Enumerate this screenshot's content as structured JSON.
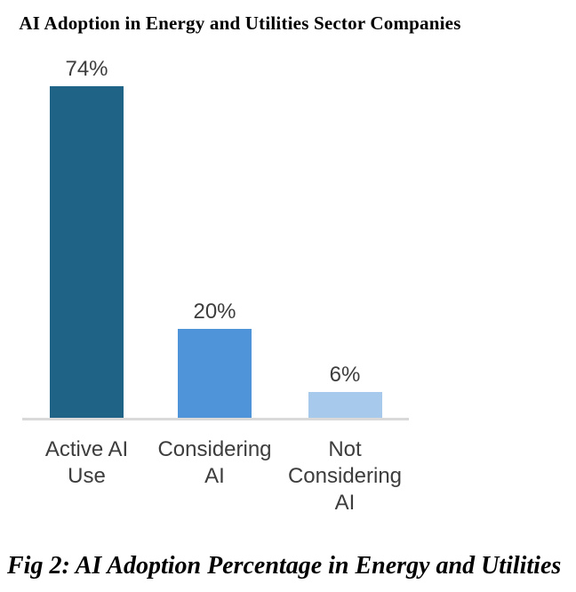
{
  "chart_data": {
    "type": "bar",
    "title": "AI Adoption in Energy and Utilities Sector Companies",
    "categories": [
      "Active AI Use",
      "Considering AI",
      "Not Considering AI"
    ],
    "category_lines": [
      [
        "Active AI",
        "Use"
      ],
      [
        "Considering",
        "AI"
      ],
      [
        "Not",
        "Considering",
        "AI"
      ]
    ],
    "values": [
      74,
      20,
      6
    ],
    "value_labels": [
      "74%",
      "20%",
      "6%"
    ],
    "unit": "%",
    "xlabel": "",
    "ylabel": "",
    "ylim": [
      0,
      80
    ],
    "grid": false,
    "legend_position": "none",
    "bar_colors": [
      "#1f6386",
      "#4f93d9",
      "#a6c9ec"
    ],
    "axis_line_color": "#d9d9d9",
    "label_color": "#3d3d3d",
    "title_color": "#000000"
  },
  "caption": {
    "text": "Fig 2: AI Adoption Percentage in Energy and Utilities"
  }
}
